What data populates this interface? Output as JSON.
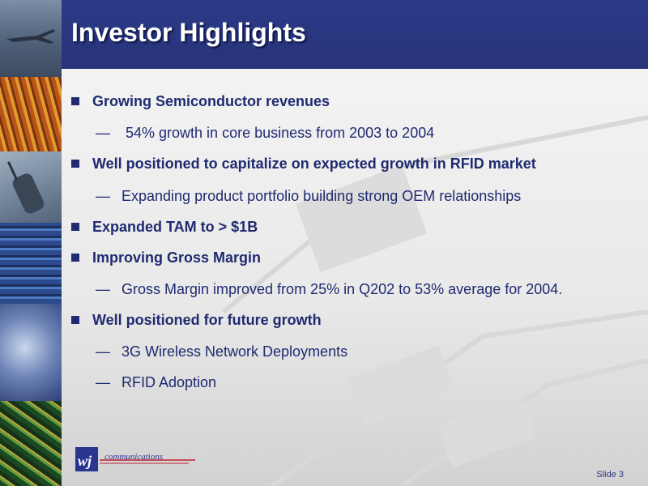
{
  "slide": {
    "title": "Investor Highlights",
    "slide_number": "Slide 3",
    "logo_text": "wj communications",
    "bullets": [
      {
        "level": 1,
        "text": "Growing Semiconductor revenues"
      },
      {
        "level": 2,
        "text": " 54% growth in core business from 2003 to 2004"
      },
      {
        "level": 1,
        "text": "Well positioned to capitalize on expected growth in RFID market"
      },
      {
        "level": 2,
        "text": "Expanding product portfolio building strong OEM relationships"
      },
      {
        "level": 1,
        "text": "Expanded TAM to > $1B"
      },
      {
        "level": 1,
        "text": "Improving Gross Margin"
      },
      {
        "level": 2,
        "text": "Gross Margin improved from 25% in Q202 to 53% average for 2004."
      },
      {
        "level": 1,
        "text": "Well positioned for future growth"
      },
      {
        "level": 2,
        "text": "3G Wireless Network Deployments"
      },
      {
        "level": 2,
        "text": "RFID Adoption"
      }
    ]
  },
  "markers": {
    "level1": "square-bullet-icon",
    "level2": "—"
  },
  "colors": {
    "title_bar": "#2c3b88",
    "text": "#1f2a70",
    "title_text": "#ffffff"
  }
}
